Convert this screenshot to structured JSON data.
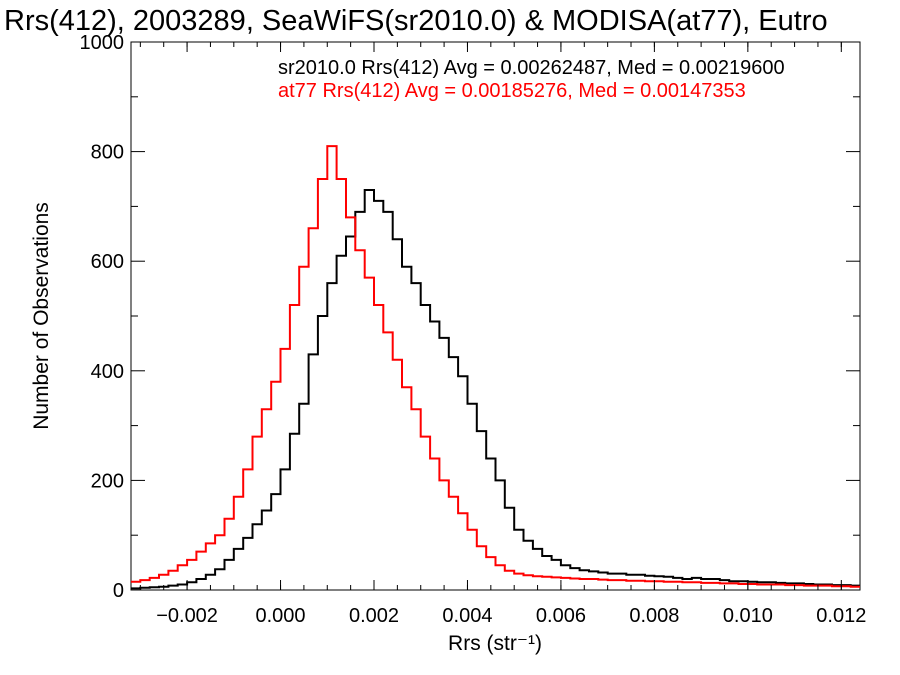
{
  "chart_data": {
    "type": "line",
    "step": true,
    "title": "Rrs(412), 2003289, SeaWiFS(sr2010.0) & MODISA(at77), Eutro",
    "xlabel": "Rrs (str⁻¹)",
    "ylabel": "Number of Observations",
    "xlim": [
      -0.0032,
      0.0124
    ],
    "ylim": [
      0,
      1000
    ],
    "xticks": [
      -0.002,
      0.0,
      0.002,
      0.004,
      0.006,
      0.008,
      0.01,
      0.012
    ],
    "xtick_labels": [
      "−0.002",
      "0.000",
      "0.002",
      "0.004",
      "0.006",
      "0.008",
      "0.010",
      "0.012"
    ],
    "yticks": [
      0,
      200,
      400,
      600,
      800,
      1000
    ],
    "ytick_labels": [
      "0",
      "200",
      "400",
      "600",
      "800",
      "1000"
    ],
    "grid": false,
    "legend_position": "top-right",
    "colors": {
      "series_1": "#000000",
      "series_2": "#ff0000"
    },
    "series": [
      {
        "name": "sr2010.0 Rrs(412) Avg = 0.00262487, Med = 0.00219600",
        "color": "#000000",
        "x": [
          -0.0032,
          -0.003,
          -0.0028,
          -0.0026,
          -0.0024,
          -0.0022,
          -0.002,
          -0.0018,
          -0.0016,
          -0.0014,
          -0.0012,
          -0.001,
          -0.0008,
          -0.0006,
          -0.0004,
          -0.0002,
          0.0,
          0.0002,
          0.0004,
          0.0006,
          0.0008,
          0.001,
          0.0012,
          0.0014,
          0.0016,
          0.0018,
          0.002,
          0.0022,
          0.0024,
          0.0026,
          0.0028,
          0.003,
          0.0032,
          0.0034,
          0.0036,
          0.0038,
          0.004,
          0.0042,
          0.0044,
          0.0046,
          0.0048,
          0.005,
          0.0052,
          0.0054,
          0.0056,
          0.0058,
          0.006,
          0.0062,
          0.0064,
          0.0066,
          0.0068,
          0.007,
          0.0072,
          0.0074,
          0.0076,
          0.0078,
          0.008,
          0.0082,
          0.0084,
          0.0086,
          0.0088,
          0.009,
          0.0092,
          0.0094,
          0.0096,
          0.0098,
          0.01,
          0.0102,
          0.0104,
          0.0106,
          0.0108,
          0.011,
          0.0112,
          0.0114,
          0.0116,
          0.0118,
          0.012,
          0.0122,
          0.0124
        ],
        "y": [
          3,
          4,
          5,
          6,
          8,
          10,
          14,
          20,
          28,
          38,
          55,
          75,
          95,
          120,
          145,
          175,
          220,
          285,
          340,
          430,
          500,
          560,
          610,
          645,
          690,
          730,
          710,
          690,
          640,
          590,
          560,
          520,
          490,
          460,
          425,
          390,
          340,
          290,
          240,
          200,
          150,
          110,
          90,
          75,
          62,
          55,
          45,
          40,
          36,
          34,
          32,
          30,
          30,
          28,
          28,
          26,
          25,
          24,
          22,
          20,
          22,
          20,
          20,
          18,
          16,
          16,
          15,
          14,
          14,
          13,
          12,
          12,
          11,
          10,
          10,
          9,
          9,
          8,
          8
        ]
      },
      {
        "name": "at77 Rrs(412) Avg = 0.00185276, Med = 0.00147353",
        "color": "#ff0000",
        "x": [
          -0.0032,
          -0.003,
          -0.0028,
          -0.0026,
          -0.0024,
          -0.0022,
          -0.002,
          -0.0018,
          -0.0016,
          -0.0014,
          -0.0012,
          -0.001,
          -0.0008,
          -0.0006,
          -0.0004,
          -0.0002,
          0.0,
          0.0002,
          0.0004,
          0.0006,
          0.0008,
          0.001,
          0.0012,
          0.0014,
          0.0016,
          0.0018,
          0.002,
          0.0022,
          0.0024,
          0.0026,
          0.0028,
          0.003,
          0.0032,
          0.0034,
          0.0036,
          0.0038,
          0.004,
          0.0042,
          0.0044,
          0.0046,
          0.0048,
          0.005,
          0.0052,
          0.0054,
          0.0056,
          0.0058,
          0.006,
          0.0062,
          0.0064,
          0.0066,
          0.0068,
          0.007,
          0.0072,
          0.0074,
          0.0076,
          0.0078,
          0.008,
          0.0082,
          0.0084,
          0.0086,
          0.0088,
          0.009,
          0.0092,
          0.0094,
          0.0096,
          0.0098,
          0.01,
          0.0102,
          0.0104,
          0.0106,
          0.0108,
          0.011,
          0.0112,
          0.0114,
          0.0116,
          0.0118,
          0.012,
          0.0122,
          0.0124
        ],
        "y": [
          15,
          18,
          22,
          28,
          35,
          45,
          55,
          70,
          85,
          100,
          130,
          170,
          220,
          280,
          330,
          380,
          440,
          520,
          590,
          660,
          750,
          810,
          750,
          680,
          620,
          570,
          520,
          470,
          420,
          370,
          330,
          280,
          240,
          200,
          170,
          140,
          110,
          80,
          60,
          45,
          35,
          30,
          27,
          25,
          24,
          23,
          22,
          21,
          20,
          20,
          19,
          18,
          18,
          17,
          17,
          16,
          16,
          15,
          15,
          14,
          14,
          13,
          13,
          12,
          12,
          11,
          11,
          10,
          10,
          10,
          9,
          9,
          8,
          8,
          8,
          7,
          7,
          6,
          6
        ]
      }
    ]
  }
}
